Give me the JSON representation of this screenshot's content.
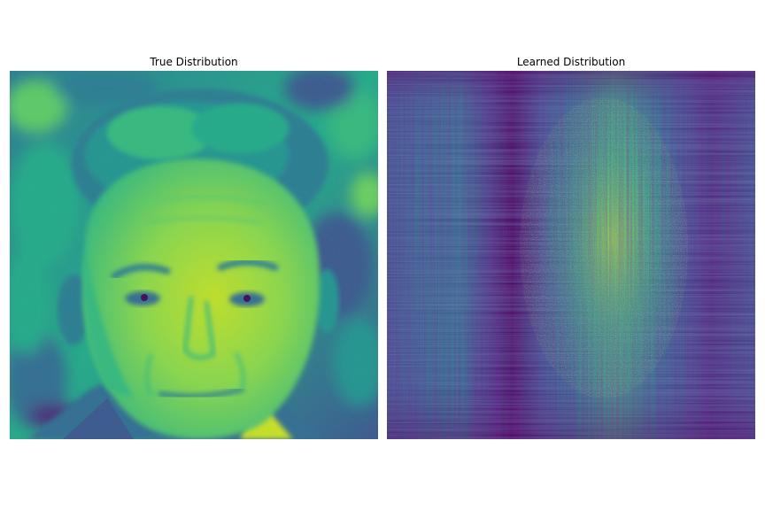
{
  "figure": {
    "left_title": "True Distribution",
    "right_title": "Learned Distribution",
    "colormap": "viridis",
    "colors": {
      "viridis_dark": "#440154",
      "viridis_indigo": "#3b528b",
      "viridis_teal": "#21918c",
      "viridis_green": "#5ec962",
      "viridis_yellow": "#fde725"
    }
  }
}
